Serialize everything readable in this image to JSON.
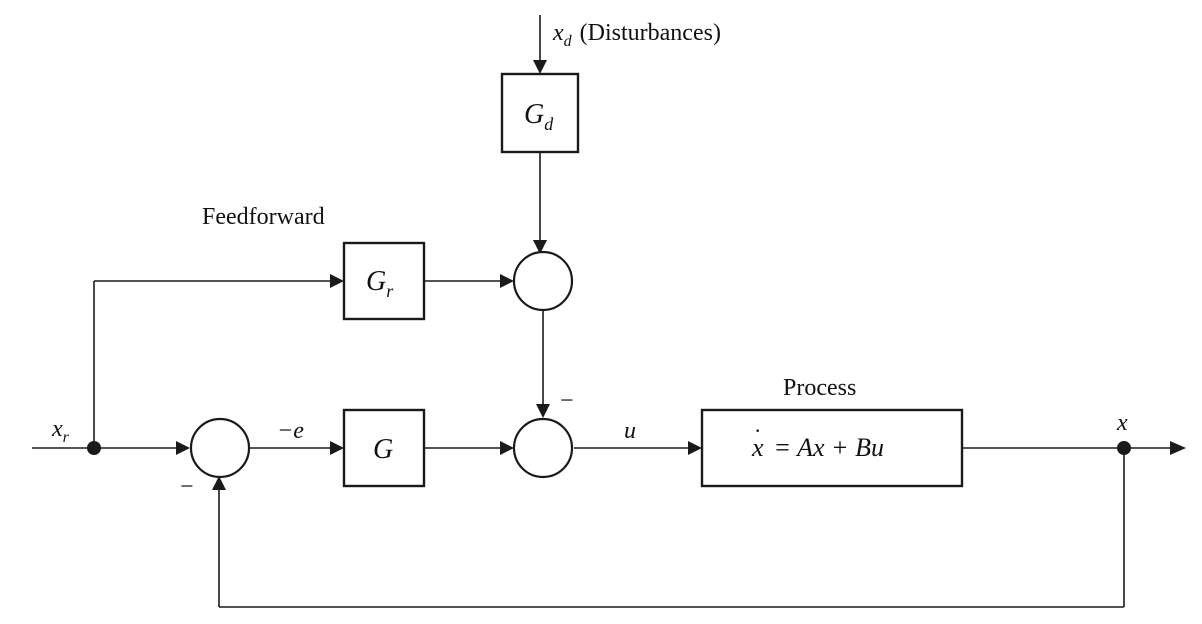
{
  "labels": {
    "disturbance_var": "x",
    "disturbance_sub": "d",
    "disturbance_text": "(Disturbances)",
    "gd_main": "G",
    "gd_sub": "d",
    "feedforward": "Feedforward",
    "gr_main": "G",
    "gr_sub": "r",
    "g": "G",
    "xr_main": "x",
    "xr_sub": "r",
    "minus_e": "−e",
    "u": "u",
    "process": "Process",
    "process_eq_x": "x",
    "process_eq_rest": "= Ax + Bu",
    "output_x": "x",
    "minus_top": "−",
    "minus_bottom": "−"
  }
}
